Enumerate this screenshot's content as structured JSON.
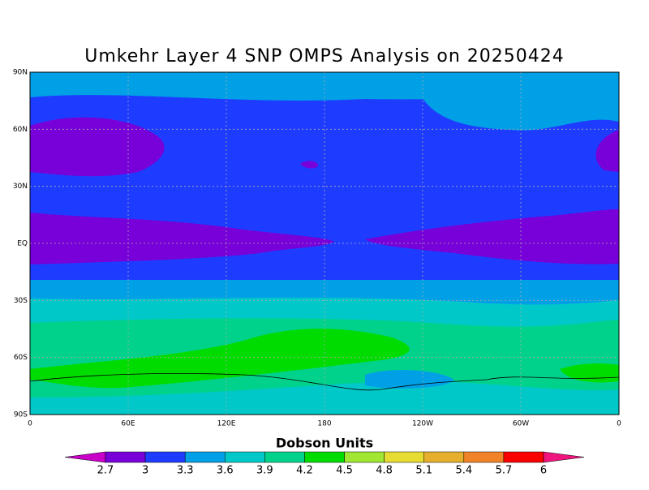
{
  "title": "Umkehr Layer 4 SNP OMPS Analysis on 20250424",
  "map": {
    "lat_ticks": [
      "90N",
      "60N",
      "30N",
      "EQ",
      "30S",
      "60S",
      "90S"
    ],
    "lon_ticks": [
      "0",
      "60E",
      "120E",
      "180",
      "120W",
      "60W",
      "0"
    ]
  },
  "colorbar": {
    "title": "Dobson Units",
    "levels": [
      2.7,
      3,
      3.3,
      3.6,
      3.9,
      4.2,
      4.5,
      4.8,
      5.1,
      5.4,
      5.7,
      6
    ],
    "colors": [
      "#c800c8",
      "#7800d8",
      "#1e3cff",
      "#00a0e6",
      "#00c8c8",
      "#00d28c",
      "#00dc00",
      "#a0e632",
      "#e6dc32",
      "#e6af2d",
      "#f08228",
      "#fa0000",
      "#f0147f"
    ]
  }
}
